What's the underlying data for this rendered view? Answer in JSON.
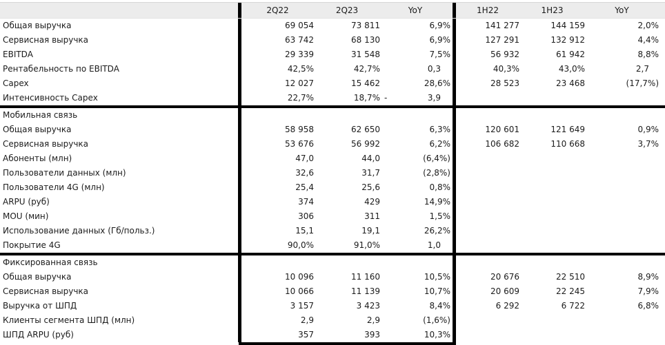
{
  "header": {
    "cols": [
      "2Q22",
      "2Q23",
      "YoY",
      "1H22",
      "1H23",
      "YoY"
    ]
  },
  "sections": [
    {
      "title": "",
      "rows": [
        {
          "label": "Общая выручка",
          "q2_22": "69 054",
          "q2_23": "73 811",
          "yoy_q": "6,9%",
          "h1_22": "141 277",
          "h1_23": "144 159",
          "yoy_h": "2,0%"
        },
        {
          "label": "Сервисная выручка",
          "q2_22": "63 742",
          "q2_23": "68 130",
          "yoy_q": "6,9%",
          "h1_22": "127 291",
          "h1_23": "132 912",
          "yoy_h": "4,4%"
        },
        {
          "label": "EBITDA",
          "q2_22": "29 339",
          "q2_23": "31 548",
          "yoy_q": "7,5%",
          "h1_22": "56 932",
          "h1_23": "61 942",
          "yoy_h": "8,8%"
        },
        {
          "label": "Рентабельность по EBITDA",
          "q2_22": "42,5%",
          "q2_23": "42,7%",
          "yoy_q": "0,3",
          "h1_22": "40,3%",
          "h1_23": "43,0%",
          "yoy_h": "2,7"
        },
        {
          "label": "Capex",
          "q2_22": "12 027",
          "q2_23": "15 462",
          "yoy_q": "28,6%",
          "h1_22": "28 523",
          "h1_23": "23 468",
          "yoy_h": "(17,7%)"
        },
        {
          "label": "Интенсивность Capex",
          "q2_22": "22,7%",
          "q2_23": "18,7%",
          "yoy_q": "- 3,9",
          "h1_22": "",
          "h1_23": "",
          "yoy_h": ""
        }
      ]
    },
    {
      "title": "Мобильная связь",
      "rows": [
        {
          "label": "Общая выручка",
          "q2_22": "58 958",
          "q2_23": "62 650",
          "yoy_q": "6,3%",
          "h1_22": "120 601",
          "h1_23": "121 649",
          "yoy_h": "0,9%"
        },
        {
          "label": "Сервисная выручка",
          "q2_22": "53 676",
          "q2_23": "56 992",
          "yoy_q": "6,2%",
          "h1_22": "106 682",
          "h1_23": "110 668",
          "yoy_h": "3,7%"
        },
        {
          "label": "Абоненты (млн)",
          "q2_22": "47,0",
          "q2_23": "44,0",
          "yoy_q": "(6,4%)",
          "h1_22": "",
          "h1_23": "",
          "yoy_h": ""
        },
        {
          "label": "Пользователи данных (млн)",
          "q2_22": "32,6",
          "q2_23": "31,7",
          "yoy_q": "(2,8%)",
          "h1_22": "",
          "h1_23": "",
          "yoy_h": ""
        },
        {
          "label": "Пользователи 4G (млн)",
          "q2_22": "25,4",
          "q2_23": "25,6",
          "yoy_q": "0,8%",
          "h1_22": "",
          "h1_23": "",
          "yoy_h": ""
        },
        {
          "label": "ARPU (руб)",
          "q2_22": "374",
          "q2_23": "429",
          "yoy_q": "14,9%",
          "h1_22": "",
          "h1_23": "",
          "yoy_h": ""
        },
        {
          "label": "MOU (мин)",
          "q2_22": "306",
          "q2_23": "311",
          "yoy_q": "1,5%",
          "h1_22": "",
          "h1_23": "",
          "yoy_h": ""
        },
        {
          "label": "Использование данных (Гб/польз.)",
          "q2_22": "15,1",
          "q2_23": "19,1",
          "yoy_q": "26,2%",
          "h1_22": "",
          "h1_23": "",
          "yoy_h": ""
        },
        {
          "label": "Покрытие 4G",
          "q2_22": "90,0%",
          "q2_23": "91,0%",
          "yoy_q": "1,0",
          "h1_22": "",
          "h1_23": "",
          "yoy_h": ""
        }
      ]
    },
    {
      "title": "Фиксированная связь",
      "rows": [
        {
          "label": "Общая выручка",
          "q2_22": "10 096",
          "q2_23": "11 160",
          "yoy_q": "10,5%",
          "h1_22": "20 676",
          "h1_23": "22 510",
          "yoy_h": "8,9%"
        },
        {
          "label": "Сервисная выручка",
          "q2_22": "10 066",
          "q2_23": "11 139",
          "yoy_q": "10,7%",
          "h1_22": "20 609",
          "h1_23": "22 245",
          "yoy_h": "7,9%"
        },
        {
          "label": "Выручка от ШПД",
          "q2_22": "3 157",
          "q2_23": "3 423",
          "yoy_q": "8,4%",
          "h1_22": "6 292",
          "h1_23": "6 722",
          "yoy_h": "6,8%"
        },
        {
          "label": "Клиенты сегмента ШПД (млн)",
          "q2_22": "2,9",
          "q2_23": "2,9",
          "yoy_q": "(1,6%)",
          "h1_22": "",
          "h1_23": "",
          "yoy_h": ""
        },
        {
          "label": "ШПД ARPU (руб)",
          "q2_22": "357",
          "q2_23": "393",
          "yoy_q": "10,3%",
          "h1_22": "",
          "h1_23": "",
          "yoy_h": ""
        }
      ]
    }
  ],
  "colors": {
    "rule": "#000000",
    "header_bg": "#ececec",
    "text": "#1b1b1b"
  }
}
